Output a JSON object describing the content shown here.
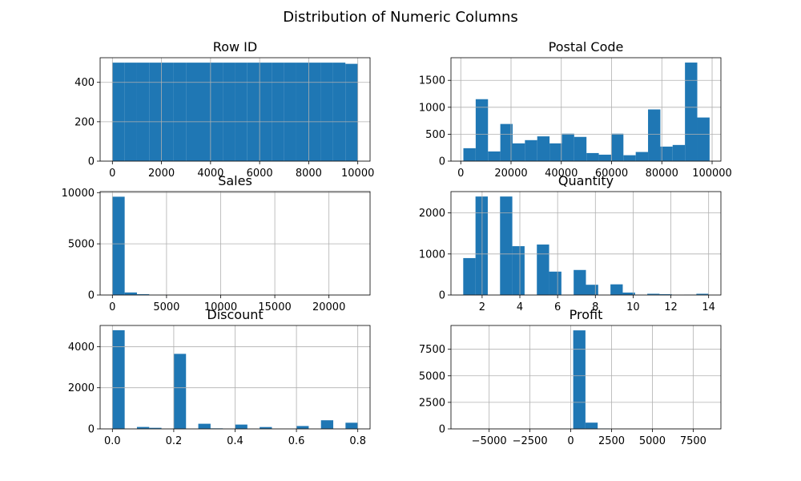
{
  "figure": {
    "title": "Distribution of Numeric Columns"
  },
  "style": {
    "bar_color": "#1f77b4",
    "grid_color": "#b0b0b0",
    "axes_color": "#000000"
  },
  "chart_data": [
    {
      "type": "bar",
      "title": "Row ID",
      "grid": true,
      "xlim": [
        -500,
        10500
      ],
      "ylim": [
        0,
        525
      ],
      "xticks": [
        0,
        2000,
        4000,
        6000,
        8000,
        10000
      ],
      "xtick_labels": [
        "0",
        "2000",
        "4000",
        "6000",
        "8000",
        "10000"
      ],
      "yticks": [
        0,
        200,
        400
      ],
      "ytick_labels": [
        "0",
        "200",
        "400"
      ],
      "bin_start": 1,
      "bin_width": 499.65,
      "values": [
        500,
        500,
        500,
        500,
        500,
        500,
        500,
        500,
        500,
        500,
        500,
        500,
        500,
        500,
        500,
        500,
        500,
        500,
        500,
        494
      ]
    },
    {
      "type": "bar",
      "title": "Postal Code",
      "grid": true,
      "xlim": [
        -3900,
        103500
      ],
      "ylim": [
        0,
        1920
      ],
      "xticks": [
        0,
        20000,
        40000,
        60000,
        80000,
        100000
      ],
      "xtick_labels": [
        "0",
        "20000",
        "40000",
        "60000",
        "80000",
        "100000"
      ],
      "yticks": [
        0,
        500,
        1000,
        1500
      ],
      "ytick_labels": [
        "0",
        "500",
        "1000",
        "1500"
      ],
      "bin_start": 1040,
      "bin_width": 4898,
      "values": [
        240,
        1150,
        180,
        690,
        330,
        390,
        460,
        330,
        510,
        450,
        150,
        120,
        510,
        110,
        170,
        960,
        270,
        300,
        1830,
        810
      ]
    },
    {
      "type": "bar",
      "title": "Sales",
      "grid": true,
      "xlim": [
        -1133,
        23797
      ],
      "ylim": [
        0,
        10100
      ],
      "xticks": [
        0,
        5000,
        10000,
        15000,
        20000
      ],
      "xtick_labels": [
        "0",
        "5000",
        "10000",
        "15000",
        "20000"
      ],
      "yticks": [
        0,
        5000,
        10000
      ],
      "ytick_labels": [
        "0",
        "5000",
        "10000"
      ],
      "bin_start": 0.444,
      "bin_width": 1133,
      "values": [
        9600,
        250,
        80,
        25,
        12,
        6,
        4,
        3,
        2,
        1,
        1,
        1,
        0,
        1,
        0,
        0,
        0,
        0,
        0,
        1
      ]
    },
    {
      "type": "bar",
      "title": "Quantity",
      "grid": true,
      "xlim": [
        0.35,
        14.65
      ],
      "ylim": [
        0,
        2520
      ],
      "xticks": [
        2,
        4,
        6,
        8,
        10,
        12,
        14
      ],
      "xtick_labels": [
        "2",
        "4",
        "6",
        "8",
        "10",
        "12",
        "14"
      ],
      "yticks": [
        0,
        1000,
        2000
      ],
      "ytick_labels": [
        "0",
        "1000",
        "2000"
      ],
      "bin_start": 1,
      "bin_width": 0.65,
      "values": [
        900,
        2400,
        0,
        2400,
        1190,
        0,
        1230,
        570,
        0,
        610,
        250,
        0,
        260,
        60,
        0,
        30,
        20,
        0,
        10,
        30
      ]
    },
    {
      "type": "bar",
      "title": "Discount",
      "grid": true,
      "xlim": [
        -0.04,
        0.84
      ],
      "ylim": [
        0,
        5030
      ],
      "xticks": [
        0.0,
        0.2,
        0.4,
        0.6,
        0.8
      ],
      "xtick_labels": [
        "0.0",
        "0.2",
        "0.4",
        "0.6",
        "0.8"
      ],
      "yticks": [
        0,
        2000,
        4000
      ],
      "ytick_labels": [
        "0",
        "2000",
        "4000"
      ],
      "bin_start": 0,
      "bin_width": 0.04,
      "values": [
        4800,
        0,
        94,
        52,
        0,
        3650,
        0,
        250,
        27,
        0,
        210,
        0,
        90,
        0,
        0,
        140,
        0,
        420,
        0,
        300
      ]
    },
    {
      "type": "bar",
      "title": "Profit",
      "grid": true,
      "xlim": [
        -7340,
        9200
      ],
      "ylim": [
        0,
        9740
      ],
      "xticks": [
        -5000,
        -2500,
        0,
        2500,
        5000,
        7500
      ],
      "xtick_labels": [
        "−5000",
        "−2500",
        "0",
        "2500",
        "5000",
        "7500"
      ],
      "yticks": [
        0,
        2500,
        5000,
        7500
      ],
      "ytick_labels": [
        "0",
        "2500",
        "5000",
        "7500"
      ],
      "bin_start": -6599.98,
      "bin_width": 750,
      "values": [
        1,
        0,
        0,
        1,
        0,
        0,
        2,
        5,
        20,
        9280,
        590,
        40,
        10,
        5,
        3,
        2,
        1,
        1,
        0,
        1
      ]
    }
  ]
}
